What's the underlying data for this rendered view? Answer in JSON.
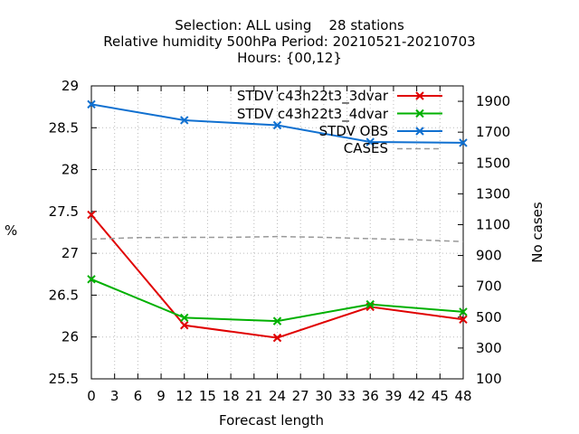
{
  "chart_data": {
    "type": "line",
    "title_lines": [
      "Selection: ALL using    28 stations",
      "Relative humidity 500hPa   Period: 20210521-20210703",
      "Hours: {00,12}"
    ],
    "xlabel": "Forecast length",
    "ylabel": "%",
    "y2label": "No cases",
    "xlim": [
      0,
      48
    ],
    "ylim": [
      25.5,
      29
    ],
    "y2lim": [
      100,
      2000
    ],
    "x_ticks": [
      "0",
      "3",
      "6",
      "9",
      "12",
      "15",
      "18",
      "21",
      "24",
      "27",
      "30",
      "33",
      "36",
      "39",
      "42",
      "45",
      "48"
    ],
    "y_ticks": [
      "25.5",
      "26",
      "26.5",
      "27",
      "27.5",
      "28",
      "28.5",
      "29"
    ],
    "y2_ticks": [
      "100",
      "300",
      "500",
      "700",
      "900",
      "1100",
      "1300",
      "1500",
      "1700",
      "1900"
    ],
    "grid": true,
    "legend_position": "top-right",
    "x": [
      0,
      12,
      24,
      36,
      48
    ],
    "series": [
      {
        "name": "STDV c43h22t3_3dvar",
        "color": "#e00000",
        "values": [
          27.46,
          26.14,
          25.99,
          26.36,
          26.21
        ],
        "marker": true
      },
      {
        "name": "STDV c43h22t3_4dvar",
        "color": "#00b000",
        "values": [
          26.69,
          26.23,
          26.19,
          26.39,
          26.3
        ],
        "marker": true
      },
      {
        "name": "STDV OBS",
        "color": "#1070d0",
        "values": [
          28.78,
          28.59,
          28.53,
          28.33,
          28.32
        ],
        "marker": true
      },
      {
        "name": "CASES",
        "color": "#999999",
        "axis": "y2",
        "dashed": true,
        "x": [
          0,
          6,
          12,
          18,
          24,
          30,
          36,
          42,
          48
        ],
        "values": [
          1006,
          1016,
          1018,
          1018,
          1023,
          1018,
          1009,
          1002,
          990
        ],
        "marker": false
      }
    ]
  }
}
